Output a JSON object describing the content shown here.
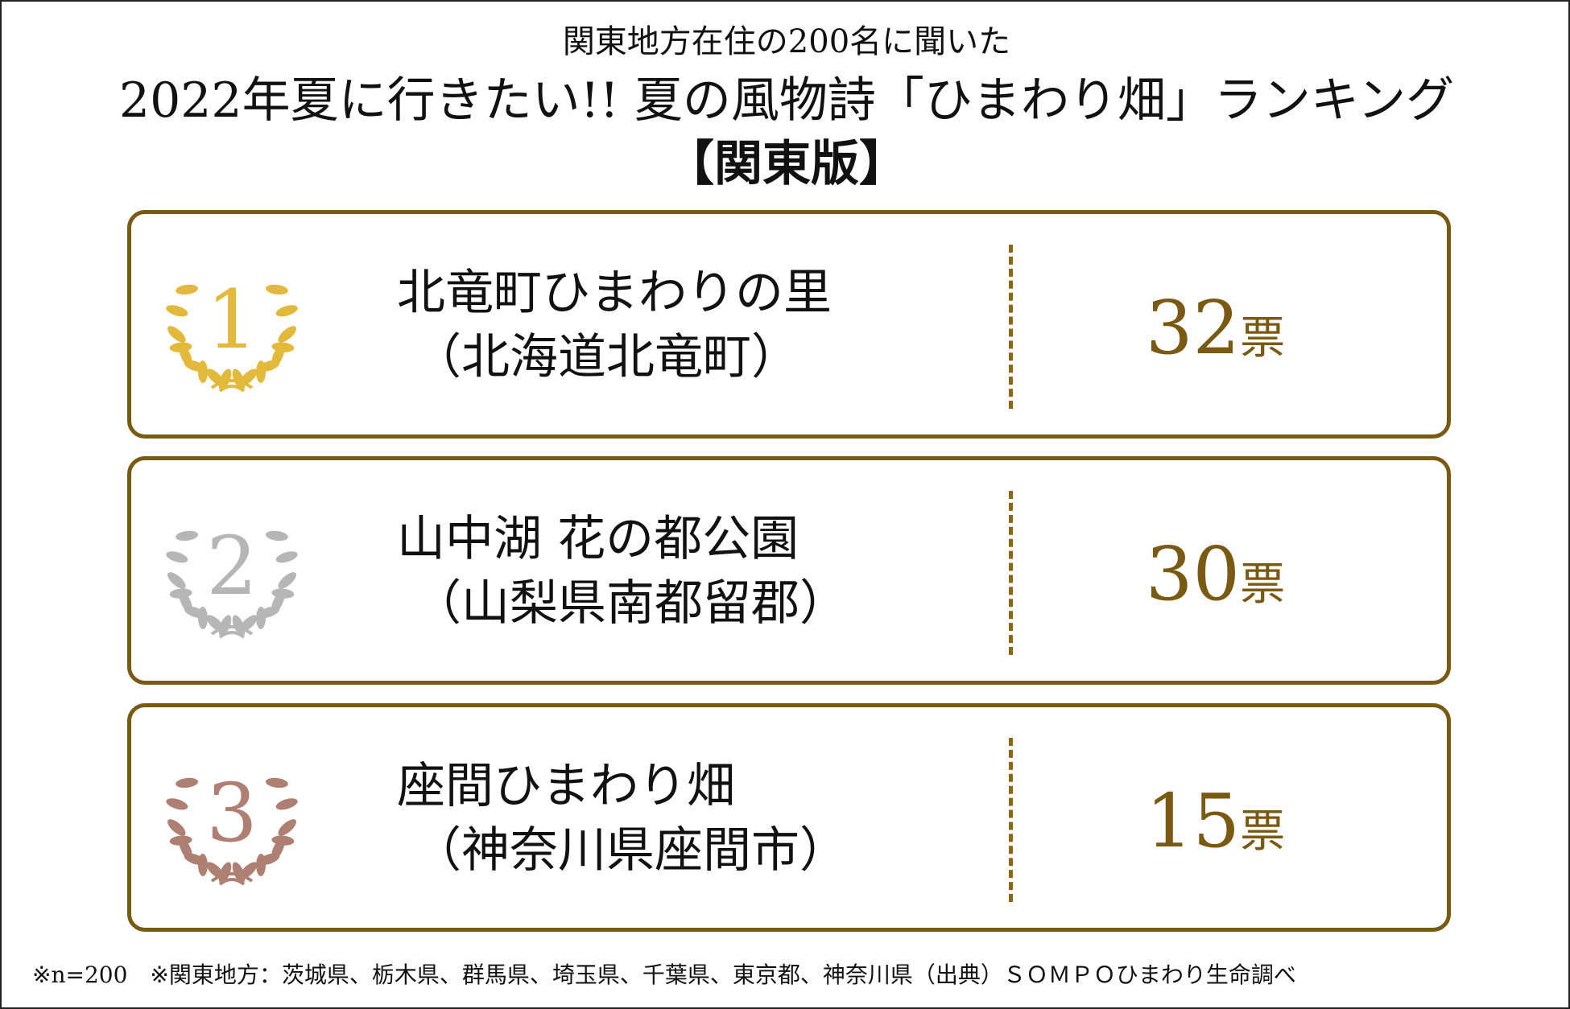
{
  "header": {
    "subtitle": "関東地方在住の200名に聞いた",
    "title": "2022年夏に行きたい!! 夏の風物詩「ひまわり畑」ランキング",
    "edition": "【関東版】"
  },
  "colors": {
    "border": "#7a5a12",
    "divider": "#8c6714",
    "votes": "#7a5a12",
    "rank1": "#e2b93a",
    "rank2": "#b6b6b6",
    "rank3": "#b07f74"
  },
  "ranking": [
    {
      "rank": "1",
      "name": "北竜町ひまわりの里",
      "location": "（北海道北竜町）",
      "votes": "32",
      "unit": "票",
      "icon": "laurel-wreath-gold-icon"
    },
    {
      "rank": "2",
      "name": "山中湖 花の都公園",
      "location": "（山梨県南都留郡）",
      "votes": "30",
      "unit": "票",
      "icon": "laurel-wreath-silver-icon"
    },
    {
      "rank": "3",
      "name": "座間ひまわり畑",
      "location": "（神奈川県座間市）",
      "votes": "15",
      "unit": "票",
      "icon": "laurel-wreath-bronze-icon"
    }
  ],
  "footnote": "※n=200　※関東地方：茨城県、栃木県、群馬県、埼玉県、千葉県、東京都、神奈川県（出典）ＳＯＭＰＯひまわり生命調べ"
}
